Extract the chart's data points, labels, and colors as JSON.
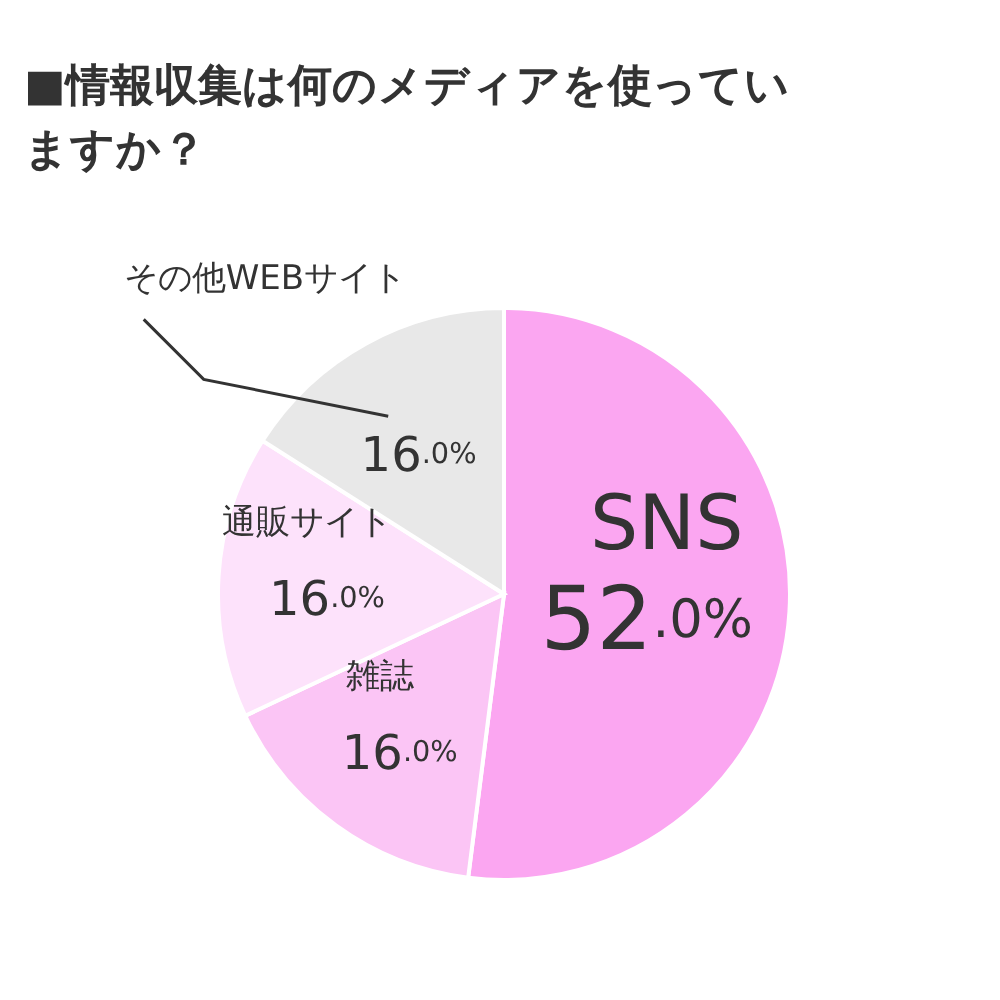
{
  "chart_data": {
    "type": "pie",
    "title": "■情報収集は何のメディアを使っていますか？",
    "categories": [
      "SNS",
      "雑誌",
      "通販サイト",
      "その他WEBサイト"
    ],
    "values": [
      52.0,
      16.0,
      16.0,
      16.0
    ],
    "colors": [
      "#fba6f1",
      "#fbc5f5",
      "#fde2fb",
      "#e8e8e8"
    ],
    "value_labels": [
      "52.0%",
      "16.0%",
      "16.0%",
      "16.0%"
    ]
  }
}
